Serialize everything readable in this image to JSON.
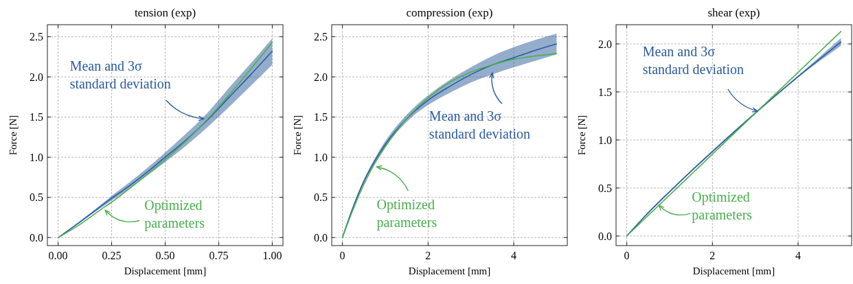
{
  "chart_data": [
    {
      "type": "line",
      "title": "tension (exp)",
      "xlabel": "Displacement [mm]",
      "ylabel": "Force [N]",
      "xlim": [
        -0.05,
        1.05
      ],
      "ylim": [
        -0.1,
        2.65
      ],
      "xticks": [
        {
          "value": 0,
          "label": "0.00"
        },
        {
          "value": 0.25,
          "label": "0.25"
        },
        {
          "value": 0.5,
          "label": "0.50"
        },
        {
          "value": 0.75,
          "label": "0.75"
        },
        {
          "value": 1,
          "label": "1.00"
        }
      ],
      "yticks": [
        {
          "value": 0,
          "label": "0.0"
        },
        {
          "value": 0.5,
          "label": "0.5"
        },
        {
          "value": 1,
          "label": "1.0"
        },
        {
          "value": 1.5,
          "label": "1.5"
        },
        {
          "value": 2,
          "label": "2.0"
        },
        {
          "value": 2.5,
          "label": "2.5"
        }
      ],
      "grid": true,
      "series": [
        {
          "color": "#2c5c9c",
          "x": [
            0,
            0.1,
            0.2,
            0.25,
            0.3,
            0.4,
            0.5,
            0.6,
            0.7,
            0.8,
            0.9,
            1.0
          ],
          "values": [
            0,
            0.19,
            0.39,
            0.49,
            0.58,
            0.78,
            1.0,
            1.22,
            1.47,
            1.75,
            2.03,
            2.32
          ],
          "lower": [
            0,
            0.18,
            0.37,
            0.46,
            0.55,
            0.74,
            0.94,
            1.15,
            1.38,
            1.63,
            1.89,
            2.15
          ],
          "upper": [
            0,
            0.2,
            0.41,
            0.52,
            0.62,
            0.83,
            1.06,
            1.3,
            1.56,
            1.87,
            2.17,
            2.48
          ]
        },
        {
          "color": "#4caf50",
          "x": [
            0,
            0.1,
            0.2,
            0.25,
            0.3,
            0.4,
            0.5,
            0.6,
            0.7,
            0.8,
            0.9,
            1.0
          ],
          "values": [
            0,
            0.16,
            0.35,
            0.44,
            0.54,
            0.75,
            0.97,
            1.21,
            1.48,
            1.78,
            2.1,
            2.43
          ]
        }
      ],
      "annotations": [
        {
          "text": "Mean and 3σ\nstandard deviation",
          "x": 0.68,
          "y": 1.48
        },
        {
          "text": "Optimized\nparameters",
          "x": 0.22,
          "y": 0.34
        }
      ]
    },
    {
      "type": "line",
      "title": "compression (exp)",
      "xlabel": "Displacement [mm]",
      "ylabel": "Force [N]",
      "xlim": [
        -0.25,
        5.25
      ],
      "ylim": [
        -0.1,
        2.65
      ],
      "xticks": [
        0,
        2,
        4
      ],
      "yticks": [
        {
          "value": 0,
          "label": "0.0"
        },
        {
          "value": 0.5,
          "label": "0.5"
        },
        {
          "value": 1,
          "label": "1.0"
        },
        {
          "value": 1.5,
          "label": "1.5"
        },
        {
          "value": 2,
          "label": "2.0"
        },
        {
          "value": 2.5,
          "label": "2.5"
        }
      ],
      "grid": true,
      "series": [
        {
          "color": "#2c5c9c",
          "x": [
            0,
            0.25,
            0.5,
            0.75,
            1,
            1.5,
            2,
            2.5,
            3,
            3.5,
            4,
            4.5,
            5
          ],
          "values": [
            0,
            0.38,
            0.7,
            0.95,
            1.16,
            1.48,
            1.71,
            1.88,
            2.03,
            2.15,
            2.24,
            2.33,
            2.41
          ],
          "lower": [
            0,
            0.37,
            0.68,
            0.93,
            1.13,
            1.44,
            1.65,
            1.8,
            1.93,
            2.03,
            2.12,
            2.2,
            2.28
          ],
          "upper": [
            0,
            0.39,
            0.72,
            0.98,
            1.2,
            1.53,
            1.77,
            1.96,
            2.12,
            2.26,
            2.37,
            2.46,
            2.54
          ]
        },
        {
          "color": "#4caf50",
          "x": [
            0,
            0.25,
            0.5,
            0.75,
            1,
            1.5,
            2,
            2.5,
            3,
            3.5,
            4,
            4.5,
            5
          ],
          "values": [
            0,
            0.35,
            0.66,
            0.92,
            1.13,
            1.48,
            1.74,
            1.93,
            2.06,
            2.15,
            2.22,
            2.26,
            2.29
          ]
        }
      ],
      "annotations": [
        {
          "text": "Mean and 3σ\nstandard deviation",
          "x": 3.5,
          "y": 2.05
        },
        {
          "text": "Optimized\nparameters",
          "x": 0.8,
          "y": 0.88
        }
      ]
    },
    {
      "type": "line",
      "title": "shear (exp)",
      "xlabel": "Displacement [mm]",
      "ylabel": "Force [N]",
      "xlim": [
        -0.25,
        5.25
      ],
      "ylim": [
        -0.1,
        2.2
      ],
      "xticks": [
        0,
        2,
        4
      ],
      "yticks": [
        {
          "value": 0,
          "label": "0.0"
        },
        {
          "value": 0.5,
          "label": "0.5"
        },
        {
          "value": 1,
          "label": "1.0"
        },
        {
          "value": 1.5,
          "label": "1.5"
        },
        {
          "value": 2,
          "label": "2.0"
        }
      ],
      "grid": true,
      "series": [
        {
          "color": "#2c5c9c",
          "x": [
            0,
            0.5,
            1,
            2,
            3,
            4,
            5
          ],
          "values": [
            0,
            0.24,
            0.46,
            0.88,
            1.28,
            1.66,
            2.02
          ],
          "lower": [
            0,
            0.24,
            0.46,
            0.87,
            1.27,
            1.65,
            1.98
          ],
          "upper": [
            0,
            0.25,
            0.47,
            0.89,
            1.29,
            1.67,
            2.06
          ]
        },
        {
          "color": "#4caf50",
          "x": [
            0,
            2.5,
            5
          ],
          "values": [
            0,
            1.065,
            2.13
          ]
        }
      ],
      "annotations": [
        {
          "text": "Mean and 3σ\nstandard deviation",
          "x": 3.05,
          "y": 1.3
        },
        {
          "text": "Optimized\nparameters",
          "x": 0.75,
          "y": 0.32
        }
      ]
    }
  ]
}
